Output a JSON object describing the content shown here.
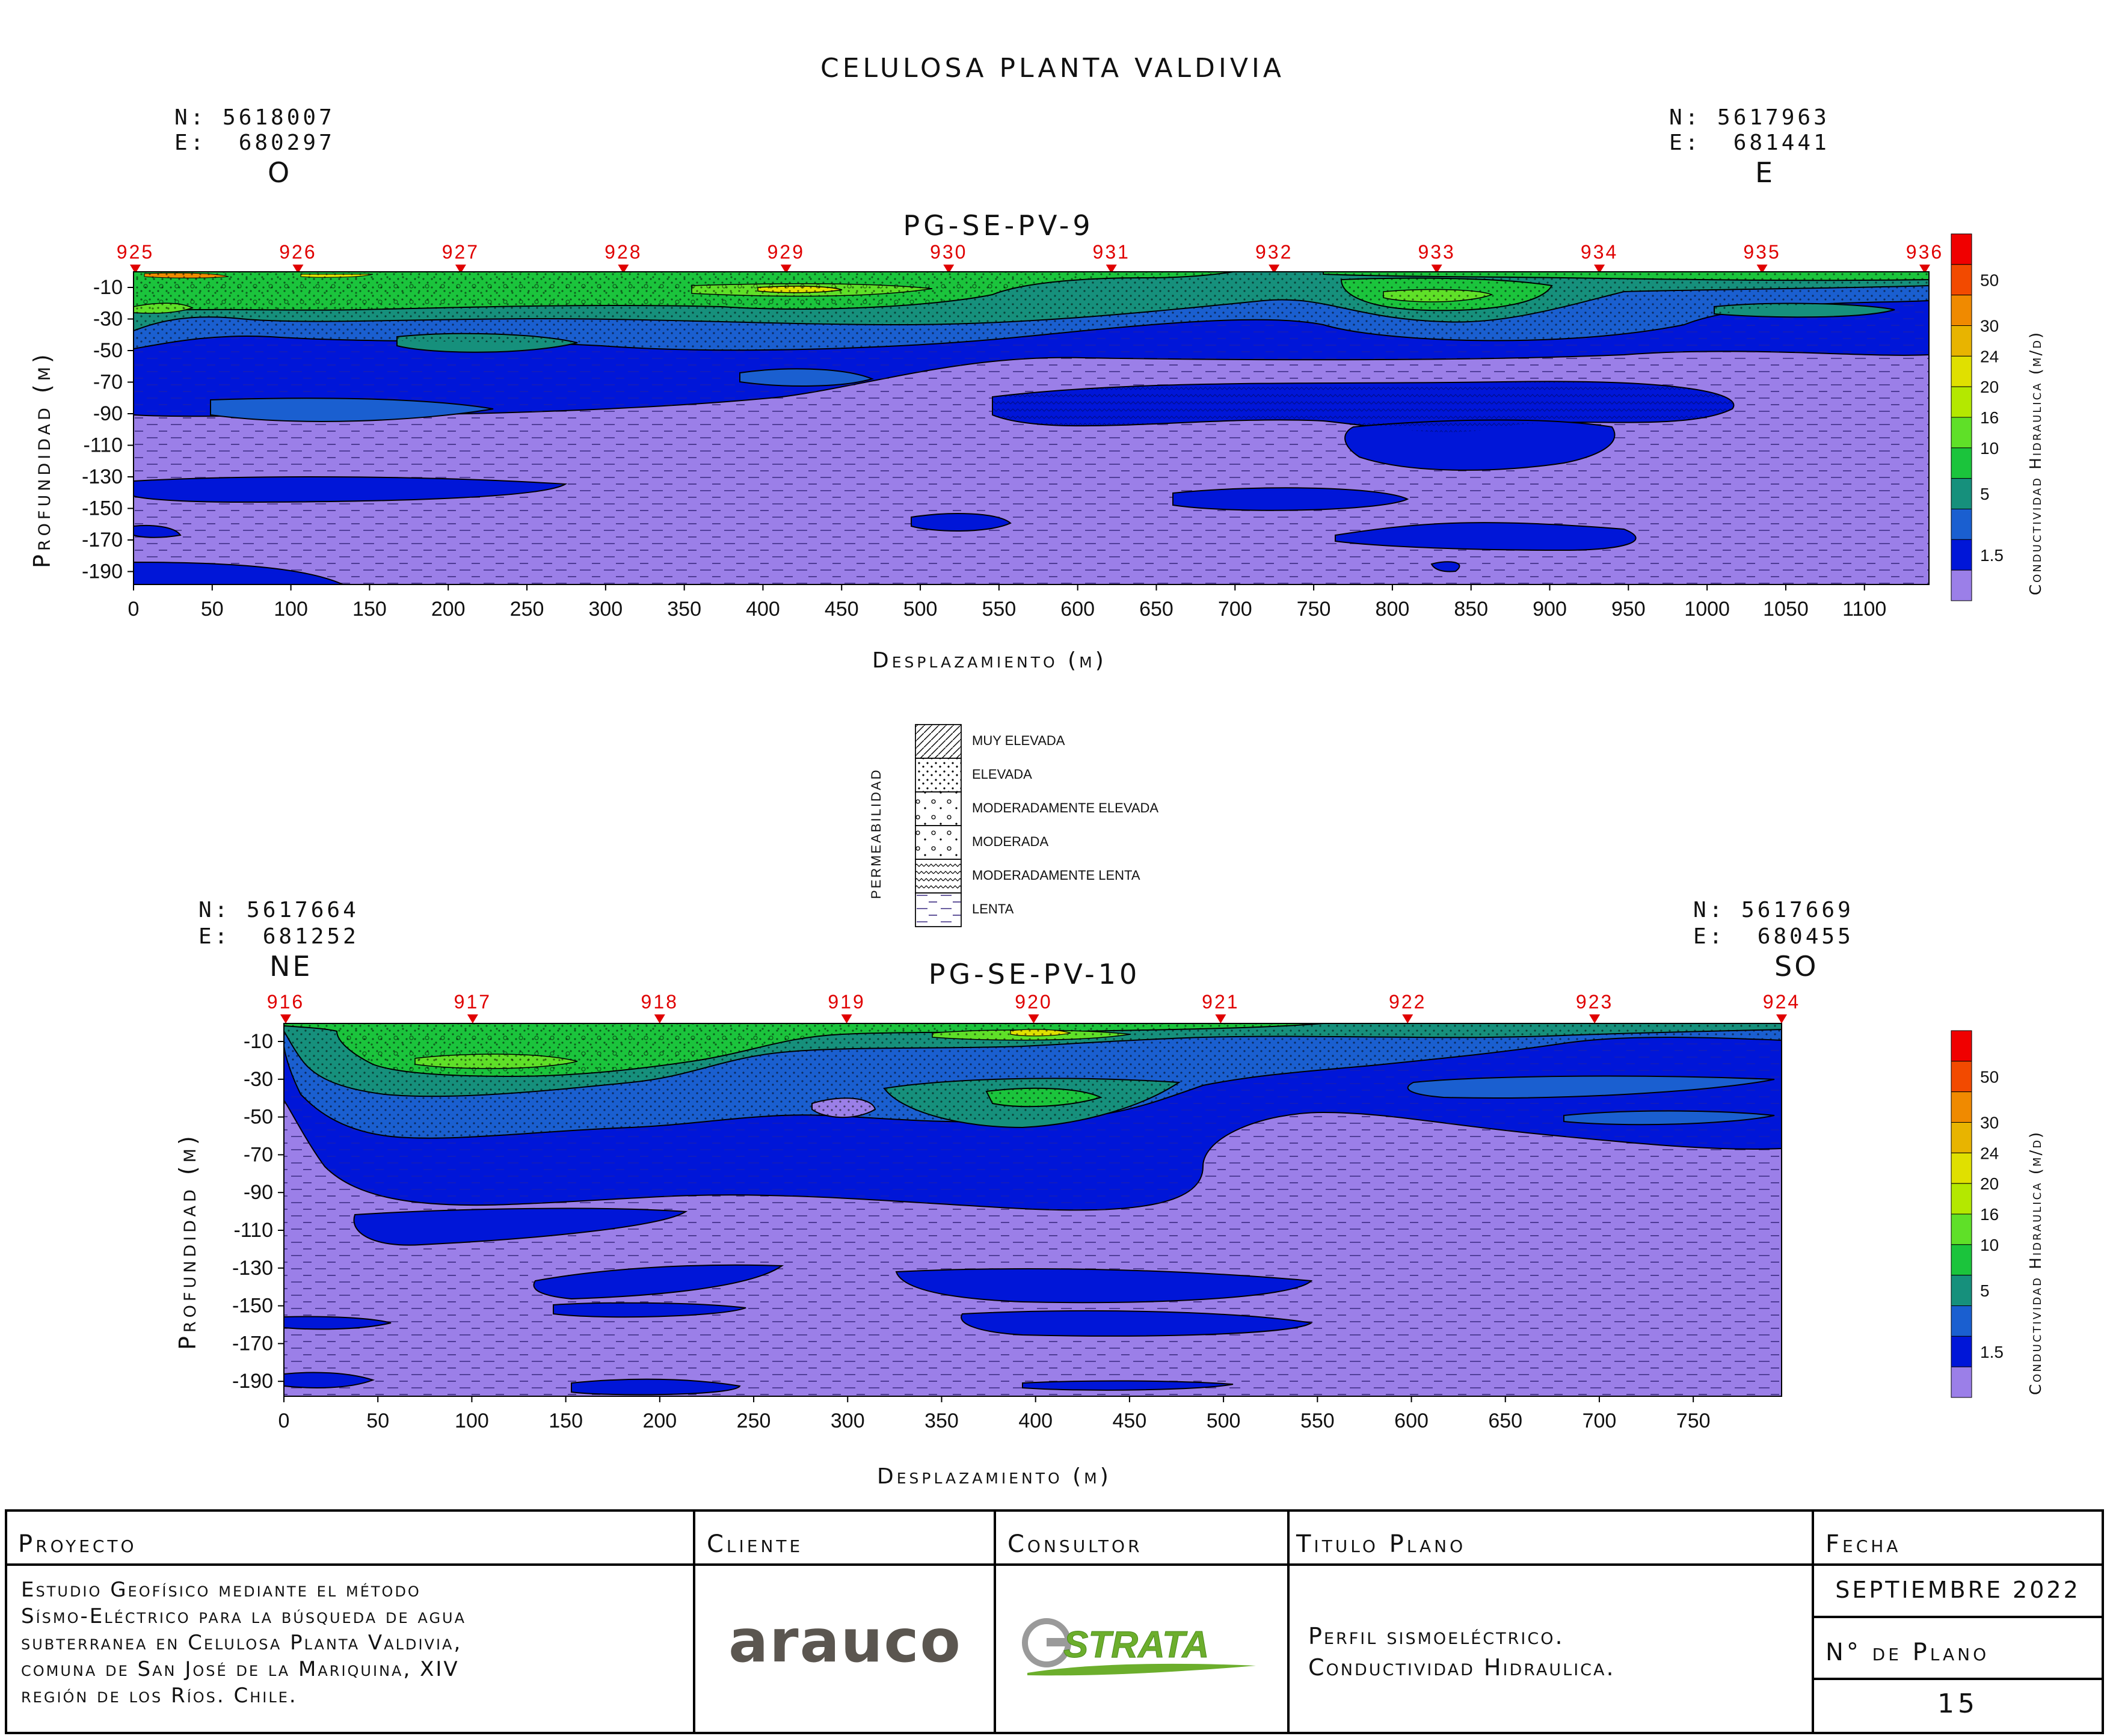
{
  "title": "CELULOSA PLANTA VALDIVIA",
  "colors": {
    "lenta": "#9b7fe8",
    "mod_lenta": "#0016d8",
    "moderada": "#1a5fd0",
    "mod_elevada": "#16907c",
    "elevada": "#1bc43c",
    "green_light": "#5fe028",
    "yellow": "#e0e000",
    "orange": "#f08a00",
    "red": "#f00000",
    "station_red": "#e00000"
  },
  "profile1": {
    "name": "PG-SE-PV-9",
    "left": {
      "n": "N: 5618007",
      "e": "E:  680297",
      "dir": "O"
    },
    "right": {
      "n": "N: 5617963",
      "e": "E:  681441",
      "dir": "E"
    },
    "stations": [
      "925",
      "926",
      "927",
      "928",
      "929",
      "930",
      "931",
      "932",
      "933",
      "934",
      "935",
      "936"
    ],
    "ylabel": "Profundidad (m)",
    "xlabel": "Desplazamiento (m)",
    "yticks": [
      "-10",
      "-30",
      "-50",
      "-70",
      "-90",
      "-110",
      "-130",
      "-150",
      "-170",
      "-190"
    ],
    "xticks": [
      "0",
      "50",
      "100",
      "150",
      "200",
      "250",
      "300",
      "350",
      "400",
      "450",
      "500",
      "550",
      "600",
      "650",
      "700",
      "750",
      "800",
      "850",
      "900",
      "950",
      "1000",
      "1050",
      "1100"
    ]
  },
  "profile2": {
    "name": "PG-SE-PV-10",
    "left": {
      "n": "N: 5617664",
      "e": "E:  681252",
      "dir": "NE"
    },
    "right": {
      "n": "N: 5617669",
      "e": "E:  680455",
      "dir": "SO"
    },
    "stations": [
      "916",
      "917",
      "918",
      "919",
      "920",
      "921",
      "922",
      "923",
      "924"
    ],
    "ylabel": "Profundidad (m)",
    "xlabel": "Desplazamiento (m)",
    "yticks": [
      "-10",
      "-30",
      "-50",
      "-70",
      "-90",
      "-110",
      "-130",
      "-150",
      "-170",
      "-190"
    ],
    "xticks": [
      "0",
      "50",
      "100",
      "150",
      "200",
      "250",
      "300",
      "350",
      "400",
      "450",
      "500",
      "550",
      "600",
      "650",
      "700",
      "750"
    ]
  },
  "colorbar": {
    "title": "Conductividad Hidraulica (m/d)",
    "labels": [
      "50",
      "30",
      "24",
      "20",
      "16",
      "10",
      "5",
      "1.5"
    ]
  },
  "legend": {
    "title": "PERMEABILIDAD",
    "items": [
      "MUY ELEVADA",
      "ELEVADA",
      "MODERADAMENTE ELEVADA",
      "MODERADA",
      "MODERADAMENTE LENTA",
      "LENTA"
    ]
  },
  "titleblock": {
    "proyecto_h": "Proyecto",
    "cliente_h": "Cliente",
    "consultor_h": "Consultor",
    "titulo_h": "Titulo Plano",
    "fecha_h": "Fecha",
    "proyecto_lines": [
      "Estudio Geofísico mediante el método",
      "Sísmo-Eléctrico para la búsqueda de agua",
      "subterranea en Celulosa Planta Valdivia,",
      "comuna de San José de la Mariquina, XIV",
      "región de los Ríos. Chile."
    ],
    "cliente_logo": "arauco",
    "consultor_logo": "STRATA",
    "titulo_lines": [
      "Perfil sismoeléctrico.",
      "Conductividad Hidraulica."
    ],
    "fecha": "SEPTIEMBRE 2022",
    "plano_h": "N° de Plano",
    "plano": "15"
  }
}
